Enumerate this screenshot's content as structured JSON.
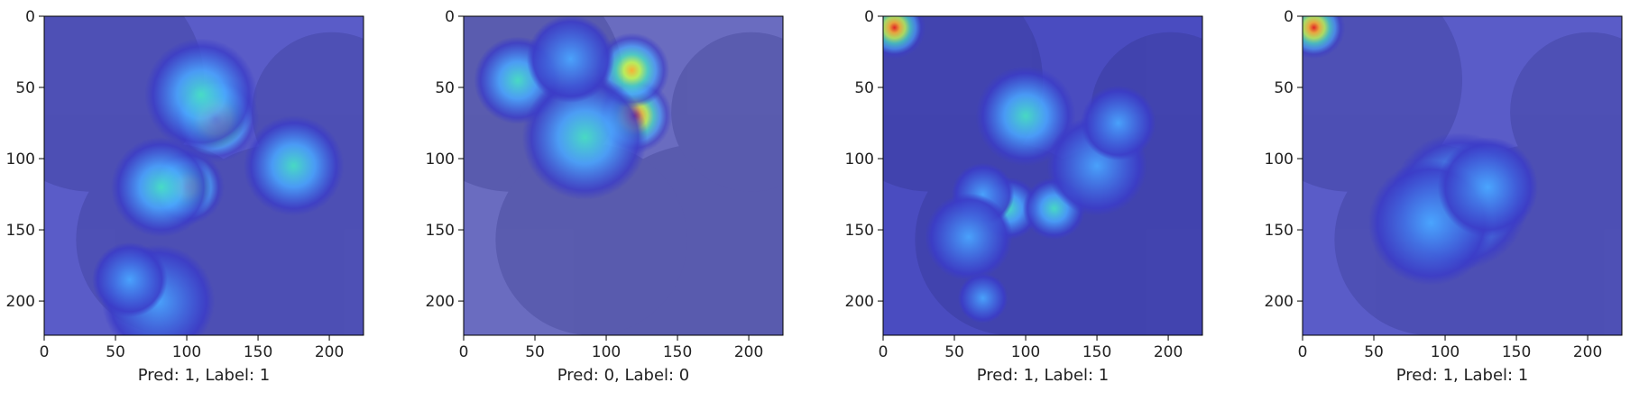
{
  "chart_data": [
    {
      "type": "heatmap",
      "xlabel": "Pred: 1, Label: 1",
      "xlim": [
        0,
        224
      ],
      "ylim": [
        224,
        0
      ],
      "xticks": [
        0,
        50,
        100,
        150,
        200
      ],
      "yticks": [
        0,
        50,
        100,
        150,
        200
      ],
      "xtick_labels": [
        "0",
        "50",
        "100",
        "150",
        "200"
      ],
      "ytick_labels": [
        "0",
        "50",
        "100",
        "150",
        "200"
      ],
      "background": "#5a5cc8",
      "hotspots": [
        {
          "x": 120,
          "y": 72,
          "intensity": 1.0,
          "radius": 14
        },
        {
          "x": 100,
          "y": 120,
          "intensity": 0.95,
          "radius": 12
        },
        {
          "x": 110,
          "y": 55,
          "intensity": 0.55,
          "radius": 18
        },
        {
          "x": 82,
          "y": 120,
          "intensity": 0.6,
          "radius": 16
        },
        {
          "x": 175,
          "y": 105,
          "intensity": 0.6,
          "radius": 16
        },
        {
          "x": 80,
          "y": 200,
          "intensity": 0.5,
          "radius": 18
        },
        {
          "x": 60,
          "y": 185,
          "intensity": 0.4,
          "radius": 12
        }
      ]
    },
    {
      "type": "heatmap",
      "xlabel": "Pred: 0, Label: 0",
      "xlim": [
        0,
        224
      ],
      "ylim": [
        224,
        0
      ],
      "xticks": [
        0,
        50,
        100,
        150,
        200
      ],
      "yticks": [
        0,
        50,
        100,
        150,
        200
      ],
      "xtick_labels": [
        "0",
        "50",
        "100",
        "150",
        "200"
      ],
      "ytick_labels": [
        "0",
        "50",
        "100",
        "150",
        "200"
      ],
      "background": "#6a6cc0",
      "hotspots": [
        {
          "x": 120,
          "y": 70,
          "intensity": 1.0,
          "radius": 12
        },
        {
          "x": 118,
          "y": 38,
          "intensity": 0.85,
          "radius": 12
        },
        {
          "x": 38,
          "y": 45,
          "intensity": 0.55,
          "radius": 14
        },
        {
          "x": 85,
          "y": 85,
          "intensity": 0.55,
          "radius": 20
        },
        {
          "x": 75,
          "y": 30,
          "intensity": 0.45,
          "radius": 14
        }
      ]
    },
    {
      "type": "heatmap",
      "xlabel": "Pred: 1, Label: 1",
      "xlim": [
        0,
        224
      ],
      "ylim": [
        224,
        0
      ],
      "xticks": [
        0,
        50,
        100,
        150,
        200
      ],
      "yticks": [
        0,
        50,
        100,
        150,
        200
      ],
      "xtick_labels": [
        "0",
        "50",
        "100",
        "150",
        "200"
      ],
      "ytick_labels": [
        "0",
        "50",
        "100",
        "150",
        "200"
      ],
      "background": "#4a4cc0",
      "hotspots": [
        {
          "x": 8,
          "y": 8,
          "intensity": 1.0,
          "radius": 10
        },
        {
          "x": 100,
          "y": 70,
          "intensity": 0.55,
          "radius": 16
        },
        {
          "x": 88,
          "y": 135,
          "intensity": 0.6,
          "radius": 10
        },
        {
          "x": 120,
          "y": 135,
          "intensity": 0.6,
          "radius": 10
        },
        {
          "x": 150,
          "y": 105,
          "intensity": 0.5,
          "radius": 16
        },
        {
          "x": 165,
          "y": 75,
          "intensity": 0.45,
          "radius": 12
        },
        {
          "x": 70,
          "y": 125,
          "intensity": 0.4,
          "radius": 10
        },
        {
          "x": 60,
          "y": 155,
          "intensity": 0.4,
          "radius": 14
        },
        {
          "x": 70,
          "y": 198,
          "intensity": 0.45,
          "radius": 8
        }
      ]
    },
    {
      "type": "heatmap",
      "xlabel": "Pred: 1, Label: 1",
      "xlim": [
        0,
        224
      ],
      "ylim": [
        224,
        0
      ],
      "xticks": [
        0,
        50,
        100,
        150,
        200
      ],
      "yticks": [
        0,
        50,
        100,
        150,
        200
      ],
      "xtick_labels": [
        "0",
        "50",
        "100",
        "150",
        "200"
      ],
      "ytick_labels": [
        "0",
        "50",
        "100",
        "150",
        "200"
      ],
      "background": "#5a5cc8",
      "hotspots": [
        {
          "x": 8,
          "y": 8,
          "intensity": 1.0,
          "radius": 10
        },
        {
          "x": 110,
          "y": 130,
          "intensity": 0.55,
          "radius": 22
        },
        {
          "x": 90,
          "y": 145,
          "intensity": 0.45,
          "radius": 20
        },
        {
          "x": 130,
          "y": 120,
          "intensity": 0.4,
          "radius": 16
        }
      ]
    }
  ]
}
